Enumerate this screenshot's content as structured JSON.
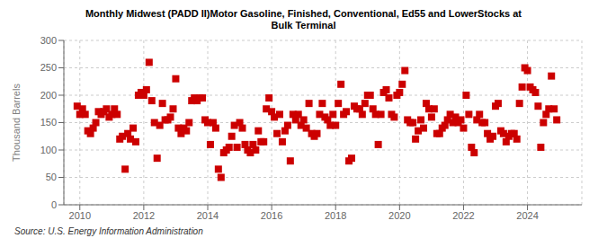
{
  "chart_data": {
    "type": "scatter",
    "title": "Monthly Midwest (PADD II)Motor Gasoline, Finished, Conventional, Ed55 and LowerStocks at\nBulk Terminal",
    "y_label": "Thousand Barrels",
    "annotations": [
      "Source: U.S. Energy Information Administration"
    ],
    "color": "#cc0000",
    "marker": "square",
    "grid": true,
    "xlim": [
      2009.5,
      2025.7
    ],
    "xticks": [
      2010,
      2012,
      2014,
      2016,
      2018,
      2020,
      2022,
      2024
    ],
    "ylim": [
      0,
      300
    ],
    "yticks": [
      0,
      50,
      100,
      150,
      200,
      250,
      300
    ],
    "x": [
      2009.917,
      2010.0,
      2010.083,
      2010.167,
      2010.25,
      2010.333,
      2010.417,
      2010.5,
      2010.583,
      2010.667,
      2010.75,
      2010.833,
      2010.917,
      2011.0,
      2011.083,
      2011.167,
      2011.25,
      2011.333,
      2011.417,
      2011.5,
      2011.583,
      2011.667,
      2011.75,
      2011.833,
      2011.917,
      2012.0,
      2012.083,
      2012.167,
      2012.25,
      2012.333,
      2012.417,
      2012.5,
      2012.583,
      2012.667,
      2012.75,
      2012.833,
      2012.917,
      2013.0,
      2013.083,
      2013.167,
      2013.25,
      2013.333,
      2013.417,
      2013.5,
      2013.583,
      2013.667,
      2013.75,
      2013.833,
      2013.917,
      2014.0,
      2014.083,
      2014.167,
      2014.25,
      2014.333,
      2014.417,
      2014.5,
      2014.583,
      2014.667,
      2014.75,
      2014.833,
      2014.917,
      2015.0,
      2015.083,
      2015.167,
      2015.25,
      2015.333,
      2015.417,
      2015.5,
      2015.583,
      2015.667,
      2015.75,
      2015.833,
      2015.917,
      2016.0,
      2016.083,
      2016.167,
      2016.25,
      2016.333,
      2016.417,
      2016.5,
      2016.583,
      2016.667,
      2016.75,
      2016.833,
      2016.917,
      2017.0,
      2017.083,
      2017.167,
      2017.25,
      2017.333,
      2017.417,
      2017.5,
      2017.583,
      2017.667,
      2017.75,
      2017.833,
      2017.917,
      2018.0,
      2018.083,
      2018.167,
      2018.25,
      2018.333,
      2018.417,
      2018.5,
      2018.583,
      2018.667,
      2018.75,
      2018.833,
      2018.917,
      2019.0,
      2019.083,
      2019.167,
      2019.25,
      2019.333,
      2019.417,
      2019.5,
      2019.583,
      2019.667,
      2019.75,
      2019.833,
      2019.917,
      2020.0,
      2020.083,
      2020.167,
      2020.25,
      2020.333,
      2020.417,
      2020.5,
      2020.583,
      2020.667,
      2020.75,
      2020.833,
      2020.917,
      2021.0,
      2021.083,
      2021.167,
      2021.25,
      2021.333,
      2021.417,
      2021.5,
      2021.583,
      2021.667,
      2021.75,
      2021.833,
      2021.917,
      2022.0,
      2022.083,
      2022.167,
      2022.25,
      2022.333,
      2022.417,
      2022.5,
      2022.583,
      2022.667,
      2022.75,
      2022.833,
      2022.917,
      2023.0,
      2023.083,
      2023.167,
      2023.25,
      2023.333,
      2023.417,
      2023.5,
      2023.583,
      2023.667,
      2023.75,
      2023.833,
      2023.917,
      2024.0,
      2024.083,
      2024.167,
      2024.25,
      2024.333,
      2024.417,
      2024.5,
      2024.583,
      2024.667,
      2024.75,
      2024.833,
      2024.917
    ],
    "values": [
      180,
      165,
      175,
      165,
      135,
      130,
      140,
      150,
      170,
      165,
      170,
      175,
      160,
      165,
      175,
      165,
      120,
      125,
      65,
      130,
      120,
      140,
      115,
      200,
      205,
      200,
      210,
      260,
      190,
      150,
      85,
      145,
      185,
      155,
      155,
      160,
      175,
      230,
      140,
      130,
      140,
      135,
      150,
      190,
      195,
      190,
      195,
      195,
      155,
      150,
      110,
      150,
      140,
      65,
      50,
      95,
      100,
      105,
      125,
      145,
      105,
      150,
      140,
      110,
      100,
      95,
      110,
      100,
      135,
      115,
      115,
      175,
      195,
      170,
      160,
      130,
      165,
      115,
      135,
      145,
      80,
      165,
      155,
      165,
      145,
      155,
      140,
      185,
      130,
      125,
      130,
      165,
      185,
      160,
      155,
      145,
      165,
      145,
      185,
      220,
      165,
      170,
      80,
      85,
      180,
      175,
      175,
      165,
      185,
      200,
      200,
      175,
      165,
      110,
      165,
      205,
      210,
      195,
      165,
      160,
      200,
      205,
      220,
      245,
      155,
      150,
      150,
      120,
      135,
      155,
      140,
      185,
      175,
      160,
      175,
      130,
      130,
      140,
      145,
      155,
      165,
      150,
      160,
      150,
      155,
      140,
      200,
      165,
      105,
      95,
      155,
      165,
      150,
      150,
      130,
      120,
      125,
      180,
      185,
      135,
      130,
      115,
      125,
      130,
      130,
      120,
      185,
      215,
      250,
      245,
      215,
      210,
      205,
      180,
      105,
      150,
      165,
      175,
      235,
      175,
      155
    ]
  }
}
